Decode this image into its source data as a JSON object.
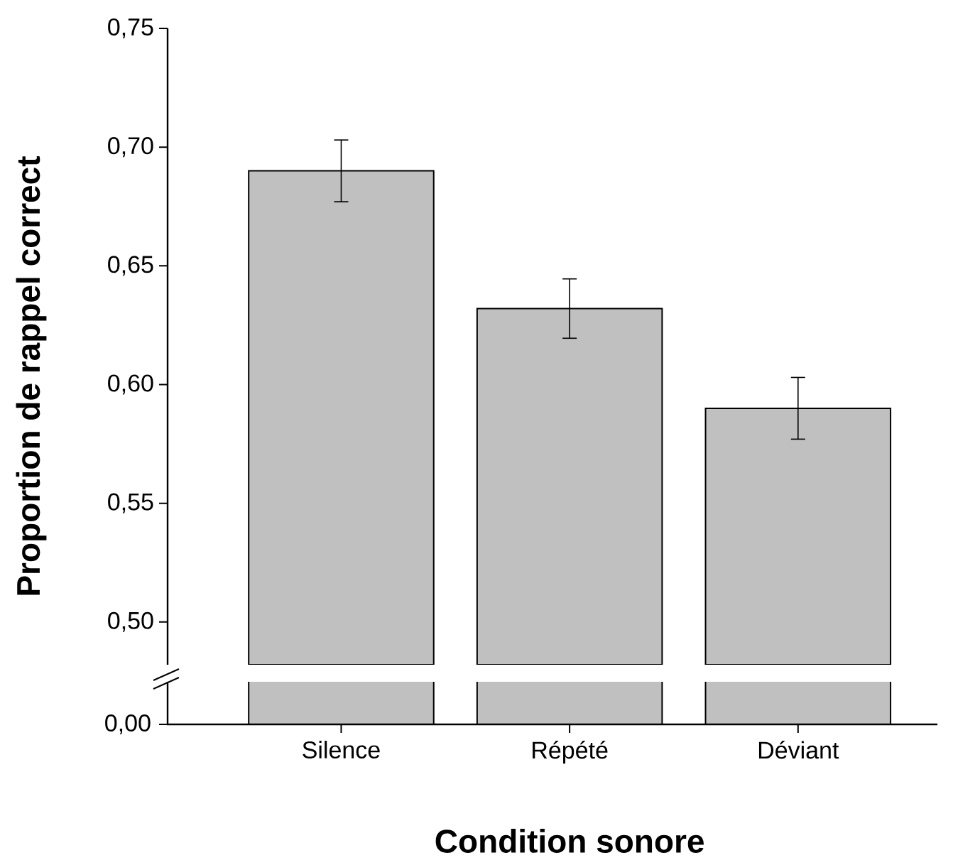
{
  "chart_data": {
    "type": "bar",
    "categories": [
      "Silence",
      "Répété",
      "Déviant"
    ],
    "values": [
      0.69,
      0.632,
      0.59
    ],
    "errors": [
      0.013,
      0.0125,
      0.013
    ],
    "color": "#c0c0c0",
    "xlabel": "Condition sonore",
    "ylabel": "Proportion de rappel correct",
    "ylim": [
      0.482,
      0.75
    ],
    "yticks": [
      {
        "value": 0.5,
        "label": "0,50"
      },
      {
        "value": 0.55,
        "label": "0,55"
      },
      {
        "value": 0.6,
        "label": "0,60"
      },
      {
        "value": 0.65,
        "label": "0,65"
      },
      {
        "value": 0.7,
        "label": "0,70"
      },
      {
        "value": 0.75,
        "label": "0,75"
      }
    ],
    "annotations": [
      "0,00"
    ],
    "grid": false
  }
}
